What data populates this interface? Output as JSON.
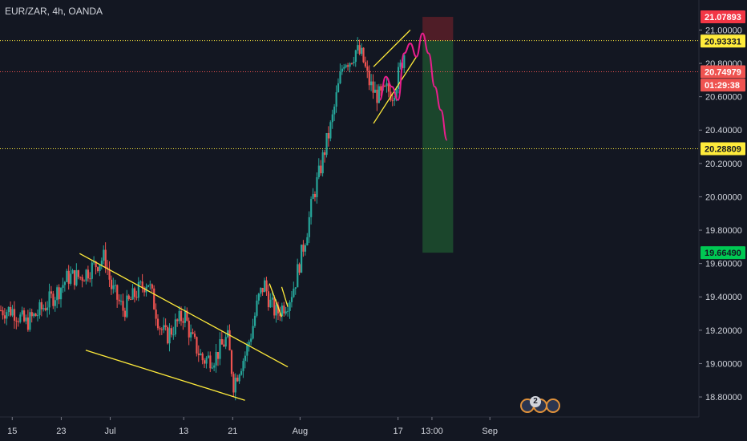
{
  "header": {
    "symbol": "EUR/ZAR, 4h, OANDA"
  },
  "colors": {
    "background": "#131722",
    "up": "#26a69a",
    "down": "#ef5350",
    "axis_text": "#d1d4dc",
    "grid": "#1e222d",
    "trendline": "#ffeb3b",
    "projection": "#e91e8c",
    "stop_zone": "#5a1e28",
    "target_zone": "#1d4f2e"
  },
  "chart_data": {
    "type": "candlestick",
    "timeframe": "4h",
    "y_axis": {
      "range": [
        18.68,
        21.18
      ],
      "ticks": [
        "21.00000",
        "20.80000",
        "20.60000",
        "20.40000",
        "20.20000",
        "20.00000",
        "19.80000",
        "19.60000",
        "19.40000",
        "19.20000",
        "19.00000",
        "18.80000"
      ]
    },
    "x_axis": {
      "labels": [
        "15",
        "23",
        "Jul",
        "13",
        "21",
        "Aug",
        "17",
        "13:00",
        "Sep"
      ],
      "label_dates": [
        "2020-06-15",
        "2020-06-23",
        "2020-07-01",
        "2020-07-13",
        "2020-07-21",
        "2020-08-01",
        "2020-08-17",
        "2020-08-22T13:00",
        "2020-09-01"
      ]
    },
    "ohlc_keypoints": [
      [
        "2020-06-15",
        19.32
      ],
      [
        "2020-06-17",
        19.24
      ],
      [
        "2020-06-19",
        19.3
      ],
      [
        "2020-06-22",
        19.42
      ],
      [
        "2020-06-24",
        19.52
      ],
      [
        "2020-06-26",
        19.52
      ],
      [
        "2020-06-30",
        19.64
      ],
      [
        "2020-07-01",
        19.46
      ],
      [
        "2020-07-03",
        19.32
      ],
      [
        "2020-07-05",
        19.42
      ],
      [
        "2020-07-07",
        19.5
      ],
      [
        "2020-07-09",
        19.22
      ],
      [
        "2020-07-10",
        19.16
      ],
      [
        "2020-07-13",
        19.3
      ],
      [
        "2020-07-14",
        19.16
      ],
      [
        "2020-07-16",
        19.02
      ],
      [
        "2020-07-18",
        19.04
      ],
      [
        "2020-07-20",
        19.16
      ],
      [
        "2020-07-21",
        18.88
      ],
      [
        "2020-07-22",
        18.98
      ],
      [
        "2020-07-23",
        19.06
      ],
      [
        "2020-07-24",
        19.2
      ],
      [
        "2020-07-25",
        19.38
      ],
      [
        "2020-07-26",
        19.48
      ],
      [
        "2020-07-27",
        19.36
      ],
      [
        "2020-07-28",
        19.3
      ],
      [
        "2020-07-30",
        19.38
      ],
      [
        "2020-07-31",
        19.48
      ],
      [
        "2020-08-02",
        19.8
      ],
      [
        "2020-08-03",
        20.0
      ],
      [
        "2020-08-04",
        20.14
      ],
      [
        "2020-08-05",
        20.3
      ],
      [
        "2020-08-06",
        20.44
      ],
      [
        "2020-08-07",
        20.64
      ],
      [
        "2020-08-08",
        20.82
      ],
      [
        "2020-08-09",
        20.82
      ],
      [
        "2020-08-10",
        20.88
      ],
      [
        "2020-08-11",
        20.84
      ],
      [
        "2020-08-12",
        20.7
      ],
      [
        "2020-08-13",
        20.62
      ],
      [
        "2020-08-14",
        20.6
      ],
      [
        "2020-08-15",
        20.64
      ],
      [
        "2020-08-16",
        20.62
      ],
      [
        "2020-08-17",
        20.74
      ],
      [
        "2020-08-18",
        20.88
      ]
    ],
    "price_levels": [
      {
        "label": "21.07893",
        "value": 21.07893,
        "color": "#f23645",
        "text_color": "#ffffff"
      },
      {
        "label": "20.93639",
        "value": 20.93639,
        "color": "#4a4a4a",
        "text_color": "#ffffff"
      },
      {
        "label": "20.93331",
        "value": 20.93331,
        "color": "#ffeb3b",
        "text_color": "#131722"
      },
      {
        "label": "20.74979",
        "value": 20.74979,
        "color": "#ef5350",
        "text_color": "#ffffff"
      },
      {
        "label": "01:29:38",
        "value": 20.67,
        "color": "#ef5350",
        "text_color": "#ffffff"
      },
      {
        "label": "20.28809",
        "value": 20.28809,
        "color": "#ffeb3b",
        "text_color": "#131722"
      },
      {
        "label": "19.66490",
        "value": 19.6649,
        "color": "#00c853",
        "text_color": "#131722"
      }
    ],
    "horizontal_lines": [
      {
        "value": 20.93639,
        "color": "#ffeb3b"
      },
      {
        "value": 20.74979,
        "color": "#ef5350"
      },
      {
        "value": 20.28809,
        "color": "#ffeb3b"
      }
    ],
    "trendlines": [
      {
        "from": [
          "2020-06-26",
          19.66
        ],
        "to": [
          "2020-07-30",
          18.98
        ]
      },
      {
        "from": [
          "2020-06-27",
          19.08
        ],
        "to": [
          "2020-07-23",
          18.78
        ]
      },
      {
        "from": [
          "2020-07-27",
          19.48
        ],
        "to": [
          "2020-07-29",
          19.28
        ]
      },
      {
        "from": [
          "2020-07-29",
          19.46
        ],
        "to": [
          "2020-07-30",
          19.34
        ]
      },
      {
        "from": [
          "2020-08-13",
          20.78
        ],
        "to": [
          "2020-08-19",
          21.0
        ]
      },
      {
        "from": [
          "2020-08-13",
          20.44
        ],
        "to": [
          "2020-08-20",
          20.84
        ]
      }
    ],
    "projection_path": [
      [
        "2020-08-14",
        20.58
      ],
      [
        "2020-08-15",
        20.72
      ],
      [
        "2020-08-16",
        20.66
      ],
      [
        "2020-08-17",
        20.58
      ],
      [
        "2020-08-18",
        20.86
      ],
      [
        "2020-08-19",
        20.92
      ],
      [
        "2020-08-20",
        20.84
      ],
      [
        "2020-08-21",
        20.98
      ],
      [
        "2020-08-22",
        20.86
      ],
      [
        "2020-08-23",
        20.66
      ],
      [
        "2020-08-24",
        20.52
      ],
      [
        "2020-08-25",
        20.34
      ]
    ],
    "position": {
      "type": "short",
      "start": "2020-08-21",
      "end": "2020-08-26",
      "entry": 20.93639,
      "stop": 21.07893,
      "target": 19.6649
    },
    "event_badge_count": "2"
  }
}
